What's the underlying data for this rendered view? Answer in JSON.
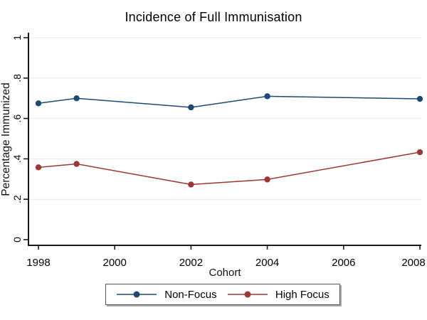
{
  "chart_data": {
    "type": "line",
    "title": "Incidence of Full Immunisation",
    "xlabel": "Cohort",
    "ylabel": "Percentage Immunized",
    "x": [
      1998,
      1999,
      2002,
      2004,
      2008
    ],
    "series": [
      {
        "name": "Non-Focus",
        "color": "#1b4a74",
        "values": [
          0.675,
          0.7,
          0.655,
          0.71,
          0.697
        ]
      },
      {
        "name": "High Focus",
        "color": "#9e3634",
        "values": [
          0.358,
          0.375,
          0.273,
          0.298,
          0.433
        ]
      }
    ],
    "xlim": [
      1998,
      2008
    ],
    "ylim": [
      0,
      1
    ],
    "xticks": [
      1998,
      2000,
      2002,
      2004,
      2006,
      2008
    ],
    "yticks": [
      0,
      0.2,
      0.4,
      0.6,
      0.8,
      1
    ],
    "ytick_labels": [
      "0",
      ".2",
      ".4",
      ".6",
      ".8",
      "1"
    ],
    "grid": true,
    "grid_color": "#e9e9e9",
    "axis_color": "#1a1a1a",
    "text_color": "#000000",
    "background": "#ffffff",
    "legend_position": "bottom"
  }
}
